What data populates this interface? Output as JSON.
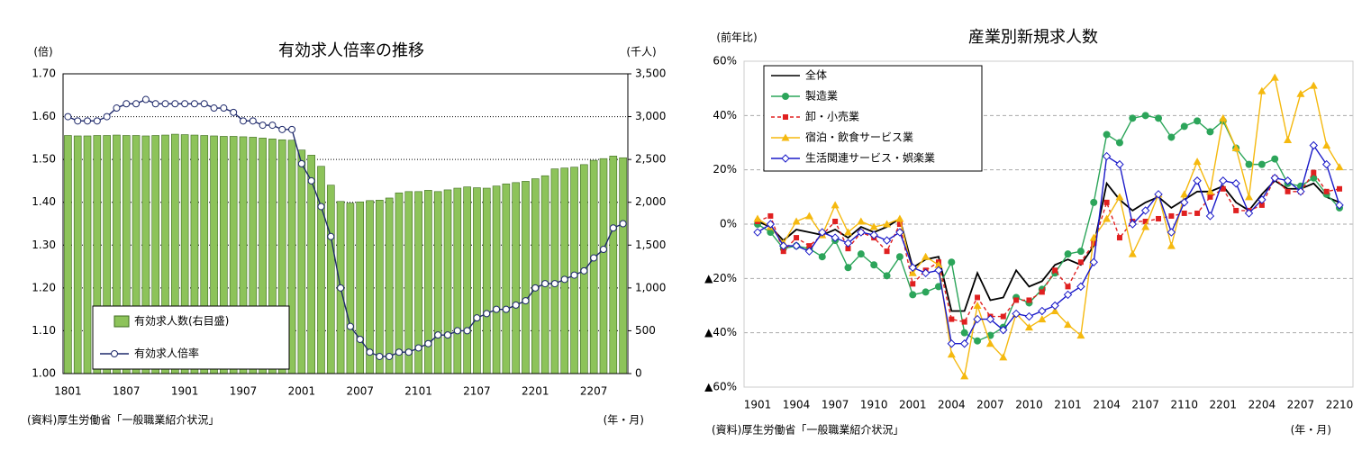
{
  "chart_data": [
    {
      "type": "combo",
      "title": "有効求人倍率の推移",
      "y_unit": "(倍)",
      "y2_unit": "(千人)",
      "source": "(資料)厚生労働省「一般職業紹介状況」",
      "x_unit": "(年・月)",
      "categories": [
        "1801",
        null,
        null,
        null,
        null,
        null,
        "1807",
        null,
        null,
        null,
        null,
        null,
        "1901",
        null,
        null,
        null,
        null,
        null,
        "1907",
        null,
        null,
        null,
        null,
        null,
        "2001",
        null,
        null,
        null,
        null,
        null,
        "2007",
        null,
        null,
        null,
        null,
        null,
        "2101",
        null,
        null,
        null,
        null,
        null,
        "2107",
        null,
        null,
        null,
        null,
        null,
        "2201",
        null,
        null,
        null,
        null,
        null,
        "2207",
        null,
        null,
        null
      ],
      "ylim": [
        1.0,
        1.7
      ],
      "yticks": [
        {
          "value": 1,
          "label": "1.00"
        },
        {
          "value": 1.1,
          "label": "1.10"
        },
        {
          "value": 1.2,
          "label": "1.20"
        },
        {
          "value": 1.3,
          "label": "1.30"
        },
        {
          "value": 1.4,
          "label": "1.40"
        },
        {
          "value": 1.5,
          "label": "1.50"
        },
        {
          "value": 1.6,
          "label": "1.60"
        },
        {
          "value": 1.7,
          "label": "1.70"
        }
      ],
      "y2lim": [
        0,
        3500
      ],
      "y2ticks": [
        0,
        500,
        {
          "value": 1000,
          "label": "1,000"
        },
        {
          "value": 1500,
          "label": "1,500"
        },
        {
          "value": 2000,
          "label": "2,000"
        },
        {
          "value": 2500,
          "label": "2,500"
        },
        {
          "value": 3000,
          "label": "3,000"
        },
        {
          "value": 3500,
          "label": "3,500"
        }
      ],
      "grid": true,
      "legend": "lower-left",
      "series": [
        {
          "name": "有効求人数(右目盛)",
          "kind": "bar",
          "axis": "y2",
          "color": "#8dc35a",
          "values": [
            2780,
            2775,
            2775,
            2780,
            2780,
            2785,
            2780,
            2780,
            2775,
            2780,
            2785,
            2795,
            2790,
            2785,
            2780,
            2775,
            2770,
            2770,
            2765,
            2760,
            2750,
            2740,
            2730,
            2725,
            2610,
            2550,
            2420,
            2200,
            2010,
            1990,
            2005,
            2020,
            2025,
            2050,
            2110,
            2125,
            2125,
            2140,
            2125,
            2145,
            2165,
            2180,
            2170,
            2165,
            2190,
            2215,
            2230,
            2245,
            2275,
            2310,
            2390,
            2400,
            2410,
            2440,
            2490,
            2510,
            2540,
            2520
          ]
        },
        {
          "name": "有効求人倍率",
          "kind": "line",
          "color": "#1f2a6b",
          "marker": "circle",
          "values": [
            1.6,
            1.59,
            1.59,
            1.59,
            1.6,
            1.62,
            1.63,
            1.63,
            1.64,
            1.63,
            1.63,
            1.63,
            1.63,
            1.63,
            1.63,
            1.62,
            1.62,
            1.61,
            1.59,
            1.59,
            1.58,
            1.58,
            1.57,
            1.57,
            1.49,
            1.45,
            1.39,
            1.32,
            1.2,
            1.11,
            1.08,
            1.05,
            1.04,
            1.04,
            1.05,
            1.05,
            1.06,
            1.07,
            1.09,
            1.09,
            1.1,
            1.1,
            1.13,
            1.14,
            1.15,
            1.15,
            1.16,
            1.17,
            1.2,
            1.21,
            1.21,
            1.22,
            1.23,
            1.24,
            1.27,
            1.29,
            1.34,
            1.35
          ]
        }
      ]
    },
    {
      "type": "line",
      "title": "産業別新規求人数",
      "y_unit": "(前年比)",
      "source": "(資料)厚生労働省「一般職業紹介状況」",
      "x_unit": "(年・月)",
      "categories": [
        "1901",
        null,
        null,
        "1904",
        null,
        null,
        "1907",
        null,
        null,
        "1910",
        null,
        null,
        "2001",
        null,
        null,
        "2004",
        null,
        null,
        "2007",
        null,
        null,
        "2010",
        null,
        null,
        "2101",
        null,
        null,
        "2104",
        null,
        null,
        "2107",
        null,
        null,
        "2110",
        null,
        null,
        "2201",
        null,
        null,
        "2204",
        null,
        null,
        "2207",
        null,
        null,
        "2210"
      ],
      "ylim": [
        -60,
        60
      ],
      "yticks": [
        {
          "value": -60,
          "label": "▲60%"
        },
        {
          "value": -40,
          "label": "▲40%"
        },
        {
          "value": -20,
          "label": "▲20%"
        },
        {
          "value": 0,
          "label": "0%"
        },
        {
          "value": 20,
          "label": "20%"
        },
        {
          "value": 40,
          "label": "40%"
        },
        {
          "value": 60,
          "label": "60%"
        }
      ],
      "grid": true,
      "legend": "upper-left",
      "series": [
        {
          "name": "全体",
          "color": "#000000",
          "marker": "none",
          "values": [
            1,
            -1,
            -6,
            -2,
            -3,
            -4,
            -2,
            -5,
            -1,
            -3,
            -1,
            2,
            -16,
            -13,
            -12,
            -32,
            -32,
            -18,
            -28,
            -27,
            -17,
            -23,
            -21,
            -15,
            -13,
            -15,
            -8,
            15,
            9,
            5,
            8,
            10,
            6,
            9,
            12,
            12,
            14,
            8,
            5,
            11,
            16,
            13,
            13,
            15,
            10,
            8
          ]
        },
        {
          "name": "製造業",
          "color": "#2ca55a",
          "marker": "circle",
          "values": [
            0,
            -3,
            -9,
            -8,
            -9,
            -12,
            -6,
            -16,
            -11,
            -15,
            -19,
            -12,
            -26,
            -25,
            -23,
            -14,
            -40,
            -43,
            -41,
            -38,
            -27,
            -29,
            -24,
            -18,
            -11,
            -10,
            8,
            33,
            30,
            39,
            40,
            39,
            32,
            36,
            38,
            34,
            38,
            28,
            22,
            22,
            24,
            15,
            14,
            17,
            11,
            6
          ]
        },
        {
          "name": "卸・小売業",
          "color": "#e02020",
          "marker": "square",
          "dash": true,
          "values": [
            1,
            3,
            -10,
            -5,
            -8,
            -4,
            1,
            -9,
            -3,
            -5,
            -10,
            0,
            -22,
            -17,
            -14,
            -35,
            -36,
            -27,
            -34,
            -34,
            -28,
            -28,
            -25,
            -17,
            -23,
            -14,
            -7,
            8,
            -5,
            1,
            1,
            2,
            3,
            4,
            4,
            10,
            13,
            5,
            5,
            7,
            17,
            12,
            12,
            19,
            12,
            13
          ]
        },
        {
          "name": "宿泊・飲食サービス業",
          "color": "#f5b90f",
          "marker": "triangle",
          "values": [
            2,
            -1,
            -7,
            1,
            3,
            -4,
            7,
            -3,
            1,
            -1,
            0,
            2,
            -18,
            -12,
            -15,
            -48,
            -56,
            -30,
            -44,
            -49,
            -33,
            -38,
            -35,
            -32,
            -37,
            -41,
            -5,
            2,
            10,
            -11,
            -1,
            11,
            -8,
            11,
            23,
            12,
            39,
            28,
            10,
            49,
            54,
            31,
            48,
            51,
            29,
            21
          ]
        },
        {
          "name": "生活関連サービス・娯楽業",
          "color": "#1a1ac8",
          "marker": "diamond",
          "values": [
            -3,
            0,
            -8,
            -8,
            -10,
            -3,
            -5,
            -7,
            -3,
            -4,
            -6,
            -3,
            -16,
            -18,
            -17,
            -44,
            -44,
            -35,
            -35,
            -39,
            -33,
            -34,
            -32,
            -30,
            -26,
            -23,
            -14,
            25,
            22,
            0,
            5,
            11,
            -3,
            8,
            16,
            3,
            16,
            15,
            4,
            9,
            17,
            16,
            12,
            29,
            22,
            7
          ]
        }
      ]
    }
  ]
}
